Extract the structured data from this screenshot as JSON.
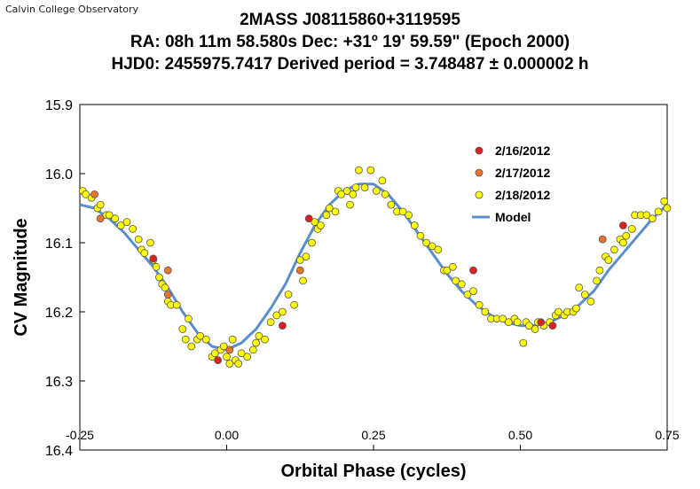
{
  "header": {
    "observatory": "Calvin College Observatory",
    "line1": "2MASS J08115860+3119595",
    "line2": "RA: 08h 11m 58.580s   Dec: +31º 19' 59.59\"  (Epoch 2000)",
    "line3": "HJD0:  2455975.7417 Derived period = 3.748487 ± 0.000002 h"
  },
  "chart_data": {
    "type": "scatter",
    "title": "2MASS J08115860+3119595",
    "xlabel": "Orbital Phase (cycles)",
    "ylabel": "CV Magnitude",
    "xlim": [
      -0.25,
      0.75
    ],
    "ylim": [
      15.9,
      16.4
    ],
    "y_inverted": true,
    "x_ticks": [
      -0.25,
      0.0,
      0.25,
      0.5,
      0.75
    ],
    "x_tick_labels": [
      "-0.25",
      "0.00",
      "0.25",
      "0.50",
      "0.75"
    ],
    "y_ticks": [
      15.9,
      16.0,
      16.1,
      16.2,
      16.3,
      16.4
    ],
    "y_tick_labels": [
      "15.9",
      "16.0",
      "16.1",
      "16.2",
      "16.3",
      "16.4"
    ],
    "grid": false,
    "legend_position": "top-right",
    "legend": [
      "2/16/2012",
      "2/17/2012",
      "2/18/2012",
      "Model"
    ],
    "colors": {
      "2/16/2012": "#e02020",
      "2/17/2012": "#e8742a",
      "2/18/2012": "#ffff00",
      "Model": "#5b8fcc"
    },
    "series": [
      {
        "name": "2/16/2012",
        "marker": "circle",
        "points": [
          [
            -0.125,
            16.123
          ],
          [
            -0.015,
            16.27
          ],
          [
            0.095,
            16.22
          ],
          [
            0.14,
            16.065
          ],
          [
            0.42,
            16.14
          ],
          [
            0.535,
            16.215
          ],
          [
            0.555,
            16.22
          ],
          [
            0.675,
            16.075
          ]
        ]
      },
      {
        "name": "2/17/2012",
        "marker": "circle",
        "points": [
          [
            -0.225,
            16.03
          ],
          [
            -0.215,
            16.065
          ],
          [
            -0.1,
            16.14
          ],
          [
            -0.1,
            16.175
          ],
          [
            0.005,
            16.255
          ],
          [
            0.125,
            16.14
          ],
          [
            0.64,
            16.095
          ]
        ]
      },
      {
        "name": "2/18/2012",
        "marker": "circle",
        "points": [
          [
            -0.245,
            16.025
          ],
          [
            -0.24,
            16.03
          ],
          [
            -0.23,
            16.035
          ],
          [
            -0.22,
            16.05
          ],
          [
            -0.215,
            16.045
          ],
          [
            -0.205,
            16.06
          ],
          [
            -0.2,
            16.06
          ],
          [
            -0.19,
            16.065
          ],
          [
            -0.18,
            16.075
          ],
          [
            -0.17,
            16.07
          ],
          [
            -0.16,
            16.08
          ],
          [
            -0.15,
            16.095
          ],
          [
            -0.145,
            16.11
          ],
          [
            -0.14,
            16.115
          ],
          [
            -0.13,
            16.1
          ],
          [
            -0.125,
            16.125
          ],
          [
            -0.12,
            16.135
          ],
          [
            -0.115,
            16.15
          ],
          [
            -0.11,
            16.16
          ],
          [
            -0.105,
            16.165
          ],
          [
            -0.1,
            16.185
          ],
          [
            -0.095,
            16.19
          ],
          [
            -0.085,
            16.19
          ],
          [
            -0.075,
            16.225
          ],
          [
            -0.07,
            16.24
          ],
          [
            -0.065,
            16.21
          ],
          [
            -0.06,
            16.25
          ],
          [
            -0.05,
            16.24
          ],
          [
            -0.045,
            16.235
          ],
          [
            -0.035,
            16.24
          ],
          [
            -0.025,
            16.265
          ],
          [
            -0.02,
            16.26
          ],
          [
            -0.01,
            16.255
          ],
          [
            -0.005,
            16.25
          ],
          [
            0.0,
            16.265
          ],
          [
            0.005,
            16.275
          ],
          [
            0.01,
            16.24
          ],
          [
            0.015,
            16.27
          ],
          [
            0.02,
            16.275
          ],
          [
            0.025,
            16.26
          ],
          [
            0.035,
            16.265
          ],
          [
            0.045,
            16.255
          ],
          [
            0.05,
            16.245
          ],
          [
            0.055,
            16.235
          ],
          [
            0.065,
            16.24
          ],
          [
            0.075,
            16.215
          ],
          [
            0.085,
            16.205
          ],
          [
            0.095,
            16.2
          ],
          [
            0.105,
            16.175
          ],
          [
            0.115,
            16.19
          ],
          [
            0.125,
            16.125
          ],
          [
            0.13,
            16.155
          ],
          [
            0.135,
            16.12
          ],
          [
            0.145,
            16.1
          ],
          [
            0.15,
            16.07
          ],
          [
            0.155,
            16.08
          ],
          [
            0.16,
            16.075
          ],
          [
            0.17,
            16.06
          ],
          [
            0.175,
            16.05
          ],
          [
            0.185,
            16.055
          ],
          [
            0.19,
            16.025
          ],
          [
            0.195,
            16.03
          ],
          [
            0.205,
            16.025
          ],
          [
            0.21,
            16.045
          ],
          [
            0.215,
            16.03
          ],
          [
            0.22,
            16.02
          ],
          [
            0.225,
            15.995
          ],
          [
            0.235,
            16.02
          ],
          [
            0.245,
            15.995
          ],
          [
            0.255,
            16.025
          ],
          [
            0.265,
            16.01
          ],
          [
            0.27,
            16.03
          ],
          [
            0.28,
            16.045
          ],
          [
            0.29,
            16.055
          ],
          [
            0.3,
            16.055
          ],
          [
            0.31,
            16.06
          ],
          [
            0.32,
            16.075
          ],
          [
            0.33,
            16.09
          ],
          [
            0.34,
            16.1
          ],
          [
            0.35,
            16.105
          ],
          [
            0.36,
            16.11
          ],
          [
            0.37,
            16.14
          ],
          [
            0.375,
            16.14
          ],
          [
            0.385,
            16.135
          ],
          [
            0.39,
            16.155
          ],
          [
            0.4,
            16.16
          ],
          [
            0.41,
            16.175
          ],
          [
            0.42,
            16.17
          ],
          [
            0.43,
            16.19
          ],
          [
            0.44,
            16.2
          ],
          [
            0.45,
            16.21
          ],
          [
            0.46,
            16.21
          ],
          [
            0.47,
            16.21
          ],
          [
            0.48,
            16.215
          ],
          [
            0.49,
            16.21
          ],
          [
            0.495,
            16.215
          ],
          [
            0.505,
            16.245
          ],
          [
            0.51,
            16.215
          ],
          [
            0.515,
            16.22
          ],
          [
            0.525,
            16.225
          ],
          [
            0.53,
            16.215
          ],
          [
            0.54,
            16.22
          ],
          [
            0.55,
            16.215
          ],
          [
            0.56,
            16.205
          ],
          [
            0.565,
            16.2
          ],
          [
            0.575,
            16.205
          ],
          [
            0.58,
            16.2
          ],
          [
            0.59,
            16.2
          ],
          [
            0.595,
            16.195
          ],
          [
            0.6,
            16.165
          ],
          [
            0.61,
            16.175
          ],
          [
            0.62,
            16.185
          ],
          [
            0.63,
            16.155
          ],
          [
            0.635,
            16.14
          ],
          [
            0.645,
            16.12
          ],
          [
            0.65,
            16.125
          ],
          [
            0.66,
            16.11
          ],
          [
            0.67,
            16.095
          ],
          [
            0.675,
            16.1
          ],
          [
            0.68,
            16.09
          ],
          [
            0.69,
            16.08
          ],
          [
            0.695,
            16.06
          ],
          [
            0.705,
            16.06
          ],
          [
            0.715,
            16.06
          ],
          [
            0.725,
            16.065
          ],
          [
            0.735,
            16.055
          ],
          [
            0.745,
            16.04
          ],
          [
            0.75,
            16.05
          ]
        ]
      },
      {
        "name": "Model",
        "type": "line",
        "points": [
          [
            -0.25,
            16.045
          ],
          [
            -0.225,
            16.05
          ],
          [
            -0.2,
            16.065
          ],
          [
            -0.175,
            16.085
          ],
          [
            -0.15,
            16.11
          ],
          [
            -0.125,
            16.135
          ],
          [
            -0.1,
            16.165
          ],
          [
            -0.075,
            16.2
          ],
          [
            -0.05,
            16.23
          ],
          [
            -0.025,
            16.25
          ],
          [
            0.0,
            16.255
          ],
          [
            0.025,
            16.245
          ],
          [
            0.05,
            16.225
          ],
          [
            0.075,
            16.195
          ],
          [
            0.1,
            16.16
          ],
          [
            0.125,
            16.115
          ],
          [
            0.15,
            16.075
          ],
          [
            0.175,
            16.045
          ],
          [
            0.2,
            16.025
          ],
          [
            0.225,
            16.015
          ],
          [
            0.25,
            16.015
          ],
          [
            0.275,
            16.03
          ],
          [
            0.3,
            16.055
          ],
          [
            0.325,
            16.085
          ],
          [
            0.35,
            16.115
          ],
          [
            0.375,
            16.145
          ],
          [
            0.4,
            16.17
          ],
          [
            0.425,
            16.19
          ],
          [
            0.45,
            16.205
          ],
          [
            0.475,
            16.215
          ],
          [
            0.5,
            16.22
          ],
          [
            0.525,
            16.22
          ],
          [
            0.55,
            16.215
          ],
          [
            0.575,
            16.205
          ],
          [
            0.6,
            16.19
          ],
          [
            0.625,
            16.17
          ],
          [
            0.65,
            16.14
          ],
          [
            0.675,
            16.115
          ],
          [
            0.7,
            16.09
          ],
          [
            0.725,
            16.065
          ],
          [
            0.75,
            16.045
          ]
        ]
      }
    ]
  }
}
